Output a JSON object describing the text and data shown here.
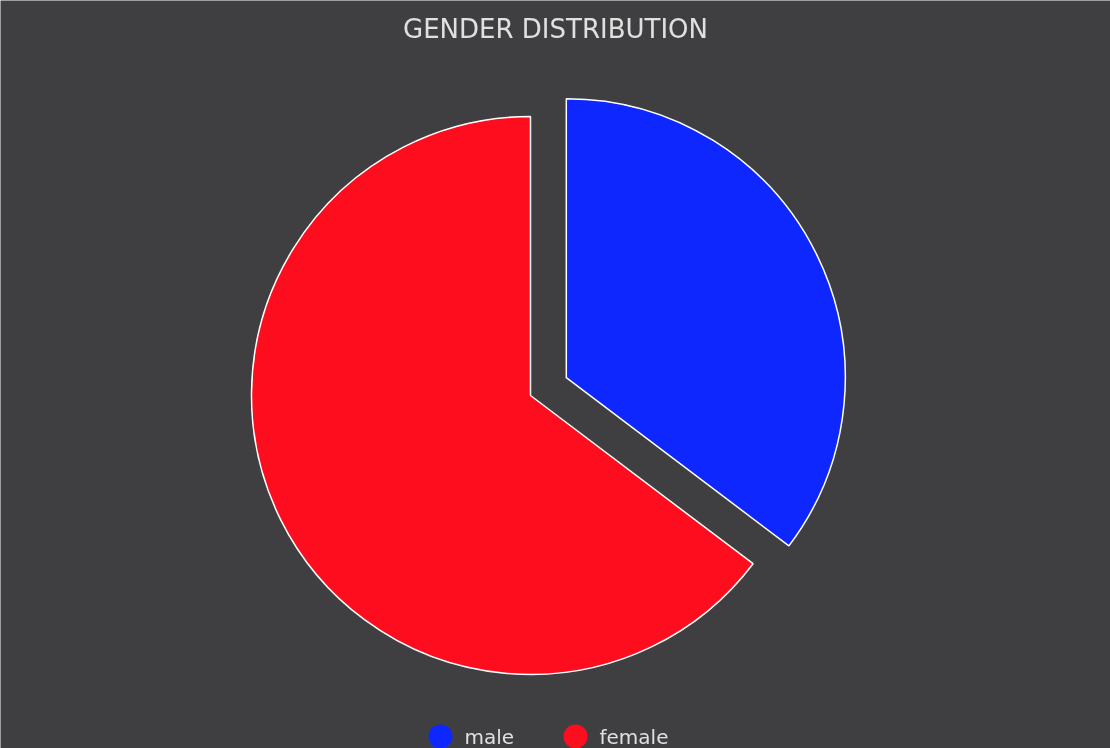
{
  "chart_data": {
    "type": "pie",
    "title": "GENDER DISTRIBUTION",
    "categories": [
      "male",
      "female"
    ],
    "values": [
      35.3,
      64.7
    ],
    "colors": [
      "#0d27fe",
      "#fe0d1e"
    ],
    "legend": "bottom"
  }
}
